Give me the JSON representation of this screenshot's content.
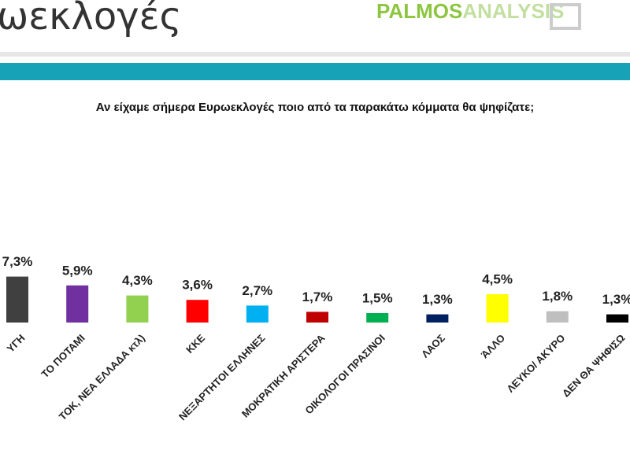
{
  "header": {
    "title": "ωεκλογές",
    "logo_a": "PALMOS",
    "logo_b": "ANALYSIS"
  },
  "chart_data": {
    "type": "bar",
    "title": "Αν είχαμε σήμερα Ευρωεκλογές ποιο από τα παρακάτω κόμματα θα ψηφίζατε;",
    "categories": [
      "ΥΓΗ",
      "ΤΟ ΠΟΤΑΜΙ",
      "ΤΟΚ, ΝΕΑ ΕΛΛΑΔΑ κτλ)",
      "ΚΚΕ",
      "ΝΕΞΑΡΤΗΤΟΙ ΕΛΛΗΝΕΣ",
      "ΜΟΚΡΑΤΙΚΗ ΑΡΙΣΤΕΡΑ",
      "ΟΙΚΟΛΟΓΟΙ ΠΡΑΣΙΝΟΙ",
      "ΛΑΟΣ",
      "ΆΛΛΟ",
      "ΛΕΥΚΟ/ ΑΚΥΡΟ",
      "ΔΕΝ ΘΑ ΨΗΦΙΣΩ"
    ],
    "values": [
      7.3,
      5.9,
      4.3,
      3.6,
      2.7,
      1.7,
      1.5,
      1.3,
      4.5,
      1.8,
      1.3
    ],
    "value_labels": [
      "7,3%",
      "5,9%",
      "4,3%",
      "3,6%",
      "2,7%",
      "1,7%",
      "1,5%",
      "1,3%",
      "4,5%",
      "1,8%",
      "1,3%"
    ],
    "colors": [
      "#404040",
      "#7030a0",
      "#92d050",
      "#ff0000",
      "#00b0f0",
      "#c00000",
      "#00b050",
      "#002060",
      "#ffff00",
      "#bfbfbf",
      "#000000"
    ]
  }
}
